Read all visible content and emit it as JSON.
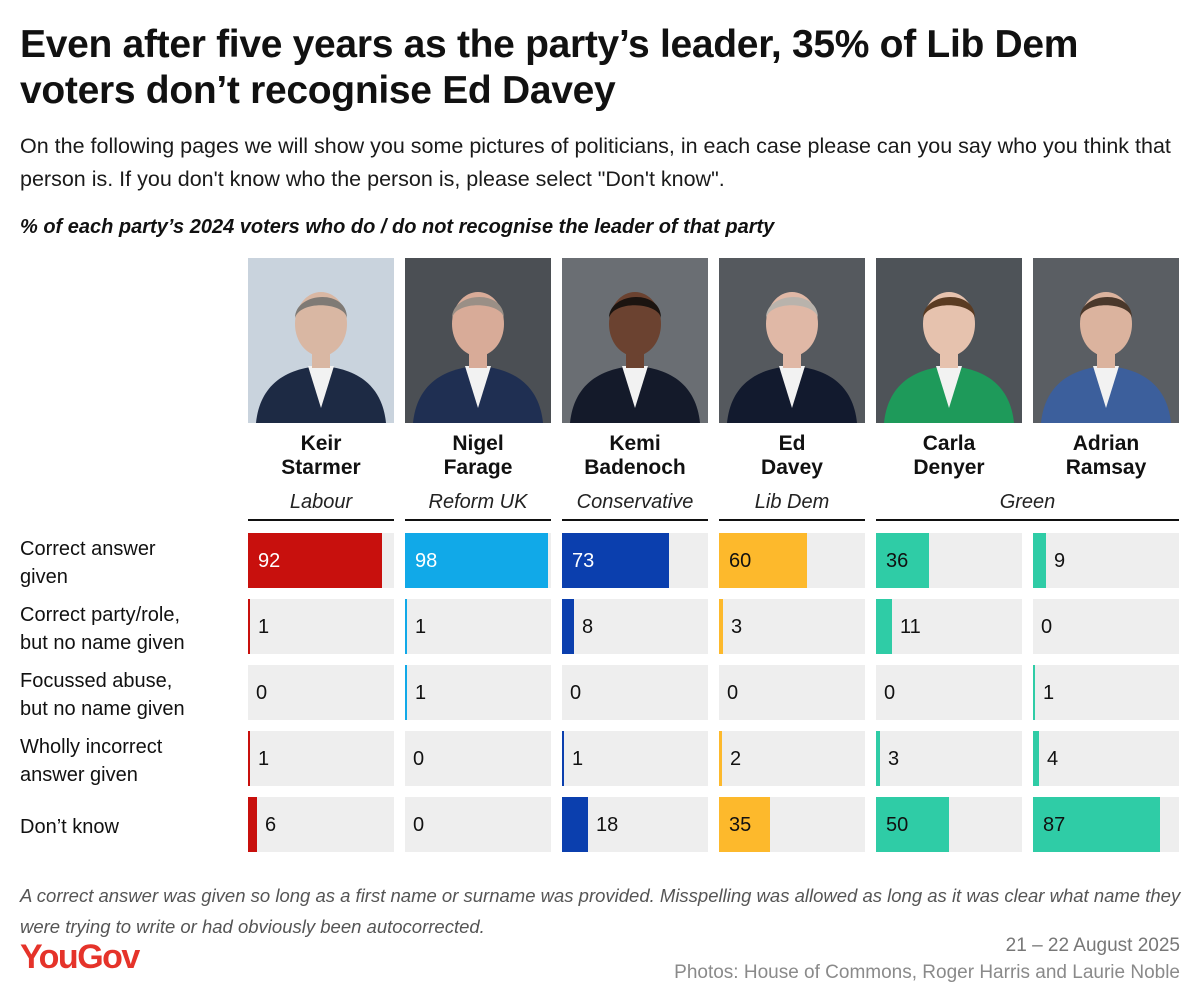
{
  "title": "Even after five years as the party’s leader, 35% of Lib Dem voters don’t recognise Ed Davey",
  "question": "On the following pages we will show you some pictures of politicians, in each case please can you say who you think that person is. If you don't know who the person is, please select \"Don't know\".",
  "subtitle": "% of each party’s 2024 voters who do / do not recognise the leader of that party",
  "footnote": "A correct answer was given so long as a first name or surname was provided. Misspelling was allowed as long as it was clear what name they were trying to write or had obviously been autocorrected.",
  "logo": "YouGov",
  "date": "21 – 22 August 2025",
  "credit": "Photos: House of Commons, Roger Harris and Laurie Noble",
  "chart_data": {
    "type": "table",
    "rows": [
      "Correct answer given",
      "Correct party/role, but no name given",
      "Focussed abuse, but no name given",
      "Wholly incorrect answer given",
      "Don’t know"
    ],
    "parties": [
      {
        "name": "Labour",
        "color": "#c8100d"
      },
      {
        "name": "Reform UK",
        "color": "#11a9e8"
      },
      {
        "name": "Conservative",
        "color": "#0b3fae"
      },
      {
        "name": "Lib Dem",
        "color": "#fdb92c"
      },
      {
        "name": "Green",
        "color": "#2fcca6"
      }
    ],
    "series": [
      {
        "first": "Keir",
        "last": "Starmer",
        "party": "Labour",
        "color": "#c8100d",
        "values": [
          92,
          1,
          0,
          1,
          6
        ]
      },
      {
        "first": "Nigel",
        "last": "Farage",
        "party": "Reform UK",
        "color": "#11a9e8",
        "values": [
          98,
          1,
          1,
          0,
          0
        ]
      },
      {
        "first": "Kemi",
        "last": "Badenoch",
        "party": "Conservative",
        "color": "#0b3fae",
        "values": [
          73,
          8,
          0,
          1,
          18
        ]
      },
      {
        "first": "Ed",
        "last": "Davey",
        "party": "Lib Dem",
        "color": "#fdb92c",
        "values": [
          60,
          3,
          0,
          2,
          35
        ]
      },
      {
        "first": "Carla",
        "last": "Denyer",
        "party": "Green",
        "color": "#2fcca6",
        "values": [
          36,
          11,
          0,
          3,
          50
        ]
      },
      {
        "first": "Adrian",
        "last": "Ramsay",
        "party": "Green",
        "color": "#2fcca6",
        "values": [
          9,
          0,
          1,
          4,
          87
        ]
      }
    ],
    "value_range": [
      0,
      100
    ]
  }
}
